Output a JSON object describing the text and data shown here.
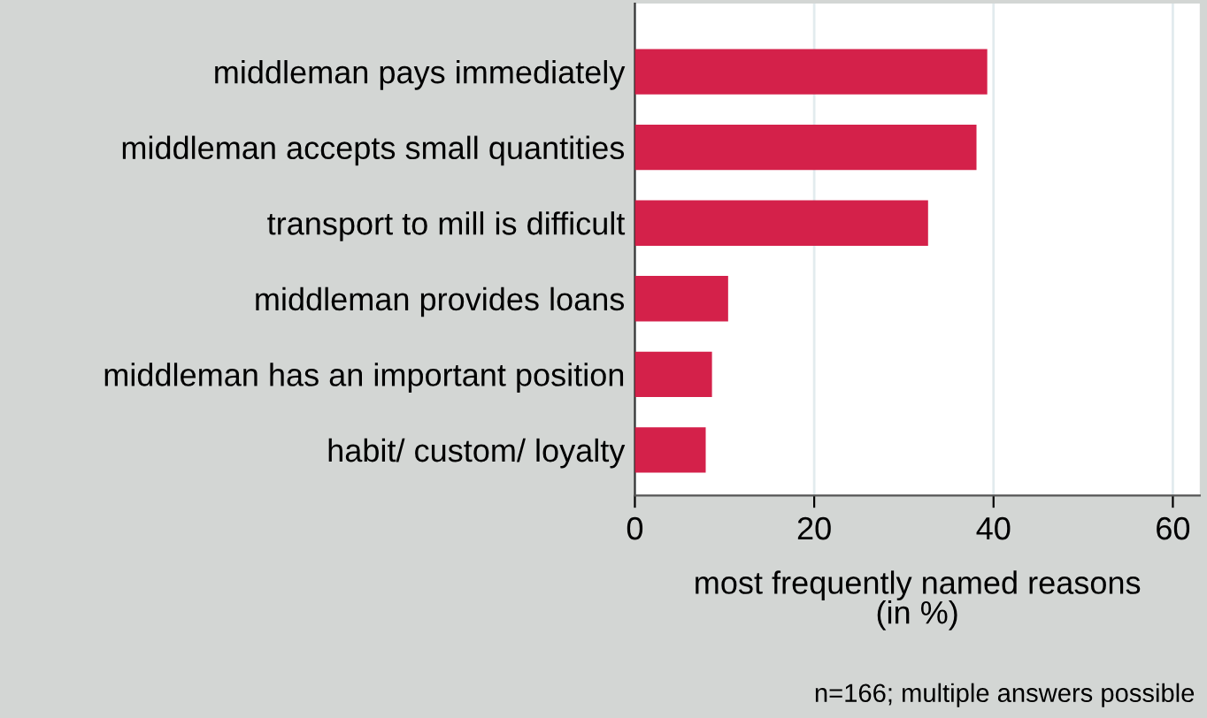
{
  "chart_data": {
    "type": "bar",
    "orientation": "horizontal",
    "categories": [
      "middleman pays immediately",
      "middleman accepts small quantities",
      "transport to mill is difficult",
      "middleman provides loans",
      "middleman has an important position",
      "habit/ custom/ loyalty"
    ],
    "values": [
      39.3,
      38.1,
      32.7,
      10.4,
      8.6,
      7.9
    ],
    "color": "#d4214a",
    "xlabel": "most frequently named reasons\n(in %)",
    "xlim": [
      0,
      63
    ],
    "xticks": [
      0,
      20,
      40,
      60
    ],
    "grid": "x",
    "annotations": [
      "n=166; multiple answers possible"
    ]
  }
}
